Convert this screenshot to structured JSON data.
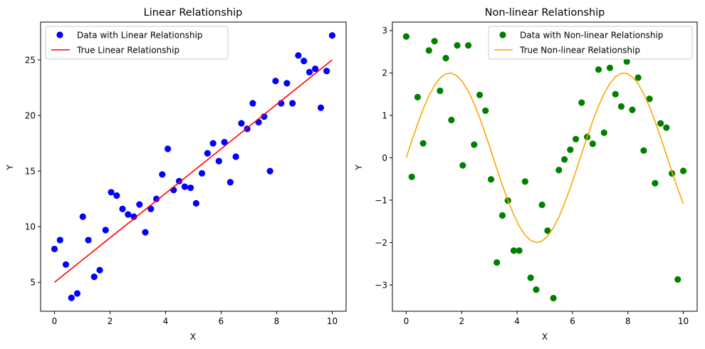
{
  "chart_data": [
    {
      "type": "scatter",
      "title": "Linear Relationship",
      "xlabel": "X",
      "ylabel": "Y",
      "xlim": [
        -0.5,
        10.5
      ],
      "ylim": [
        2.4,
        28.4
      ],
      "xticks": [
        0,
        2,
        4,
        6,
        8,
        10
      ],
      "yticks": [
        5,
        10,
        15,
        20,
        25
      ],
      "grid": false,
      "legend_position": "top-left",
      "series": [
        {
          "name": "Data with Linear Relationship",
          "kind": "scatter",
          "color": "#0000ff",
          "x": [
            0.0,
            0.2,
            0.41,
            0.61,
            0.82,
            1.02,
            1.22,
            1.43,
            1.63,
            1.84,
            2.04,
            2.24,
            2.45,
            2.65,
            2.86,
            3.06,
            3.27,
            3.47,
            3.67,
            3.88,
            4.08,
            4.29,
            4.49,
            4.69,
            4.9,
            5.1,
            5.31,
            5.51,
            5.71,
            5.92,
            6.12,
            6.33,
            6.53,
            6.73,
            6.94,
            7.14,
            7.35,
            7.55,
            7.76,
            7.96,
            8.16,
            8.37,
            8.57,
            8.78,
            8.98,
            9.18,
            9.39,
            9.59,
            9.8,
            10.0
          ],
          "y": [
            8.0,
            8.8,
            6.6,
            3.6,
            4.0,
            10.9,
            8.8,
            5.5,
            6.1,
            9.7,
            13.1,
            12.8,
            11.6,
            11.1,
            10.9,
            12.0,
            9.5,
            11.6,
            12.5,
            14.7,
            17.0,
            13.3,
            14.1,
            13.6,
            13.5,
            12.1,
            14.8,
            16.6,
            17.5,
            15.9,
            17.6,
            14.0,
            16.3,
            19.3,
            18.8,
            21.1,
            19.4,
            19.9,
            15.0,
            23.1,
            21.1,
            22.9,
            21.1,
            25.4,
            24.9,
            23.9,
            24.2,
            20.7,
            24.0,
            27.2
          ]
        },
        {
          "name": "True Linear Relationship",
          "kind": "line",
          "color": "#ff0000",
          "x": [
            0,
            10
          ],
          "y": [
            5,
            25
          ]
        }
      ]
    },
    {
      "type": "scatter",
      "title": "Non-linear Relationship",
      "xlabel": "X",
      "ylabel": "Y",
      "xlim": [
        -0.5,
        10.5
      ],
      "ylim": [
        -3.62,
        3.2
      ],
      "xticks": [
        0,
        2,
        4,
        6,
        8,
        10
      ],
      "yticks": [
        -3,
        -2,
        -1,
        0,
        1,
        2,
        3
      ],
      "grid": false,
      "legend_position": "top-right",
      "series": [
        {
          "name": "Data with Non-linear Relationship",
          "kind": "scatter",
          "color": "#008000",
          "x": [
            0.0,
            0.2,
            0.41,
            0.61,
            0.82,
            1.02,
            1.22,
            1.43,
            1.63,
            1.84,
            2.04,
            2.24,
            2.45,
            2.65,
            2.86,
            3.06,
            3.27,
            3.47,
            3.67,
            3.88,
            4.08,
            4.29,
            4.49,
            4.69,
            4.9,
            5.1,
            5.31,
            5.51,
            5.71,
            5.92,
            6.12,
            6.33,
            6.53,
            6.73,
            6.94,
            7.14,
            7.35,
            7.55,
            7.76,
            7.96,
            8.16,
            8.37,
            8.57,
            8.78,
            8.98,
            9.18,
            9.39,
            9.59,
            9.8,
            10.0
          ],
          "y": [
            2.86,
            -0.45,
            1.43,
            0.34,
            2.53,
            2.75,
            1.58,
            2.35,
            0.89,
            2.65,
            -0.18,
            2.65,
            0.31,
            1.48,
            1.11,
            -0.51,
            -2.47,
            -1.36,
            -1.01,
            -2.19,
            -2.19,
            -0.56,
            -2.83,
            -3.11,
            -1.11,
            -1.72,
            -3.31,
            -0.29,
            -0.04,
            0.19,
            0.44,
            1.3,
            0.49,
            0.33,
            2.08,
            0.59,
            2.12,
            1.5,
            1.21,
            2.27,
            1.13,
            1.89,
            0.17,
            1.39,
            -0.6,
            0.81,
            0.71,
            -0.37,
            -2.87,
            -0.31
          ]
        },
        {
          "name": "True Non-linear Relationship",
          "kind": "line",
          "color": "#ffa500",
          "function": "2*sin(x)",
          "x_range": [
            0,
            10
          ]
        }
      ]
    }
  ]
}
